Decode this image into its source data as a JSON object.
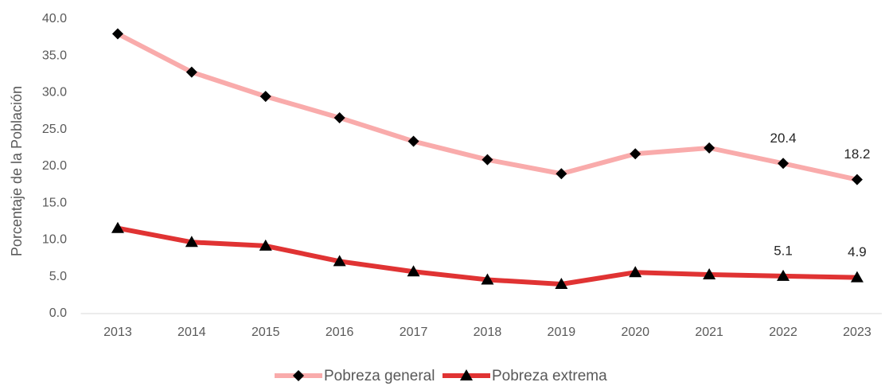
{
  "chart_data": {
    "type": "line",
    "y_label": "Porcentaje de la Población",
    "categories": [
      "2013",
      "2014",
      "2015",
      "2016",
      "2017",
      "2018",
      "2019",
      "2020",
      "2021",
      "2022",
      "2023"
    ],
    "series": [
      {
        "name": "Pobreza general",
        "color": "#f9abab",
        "marker": "diamond",
        "values": [
          38.0,
          32.8,
          29.5,
          26.6,
          23.4,
          20.9,
          19.0,
          21.7,
          22.5,
          20.4,
          18.2
        ],
        "value_labels": [
          null,
          null,
          null,
          null,
          null,
          null,
          null,
          null,
          null,
          "20.4",
          "18.2"
        ]
      },
      {
        "name": "Pobreza extrema",
        "color": "#e03333",
        "marker": "triangle",
        "values": [
          11.6,
          9.7,
          9.2,
          7.1,
          5.7,
          4.6,
          4.0,
          5.6,
          5.3,
          5.1,
          4.9
        ],
        "value_labels": [
          null,
          null,
          null,
          null,
          null,
          null,
          null,
          null,
          null,
          "5.1",
          "4.9"
        ]
      }
    ],
    "ylim": [
      0,
      40
    ],
    "yticks": [
      {
        "value": 0,
        "label": "0.0"
      },
      {
        "value": 5,
        "label": "5.0"
      },
      {
        "value": 10,
        "label": "10.0"
      },
      {
        "value": 15,
        "label": "15.0"
      },
      {
        "value": 20,
        "label": "20.0"
      },
      {
        "value": 25,
        "label": "25.0"
      },
      {
        "value": 30,
        "label": "30.0"
      },
      {
        "value": 35,
        "label": "35.0"
      },
      {
        "value": 40,
        "label": "40.0"
      }
    ],
    "grid": false,
    "legend": "bottom"
  }
}
